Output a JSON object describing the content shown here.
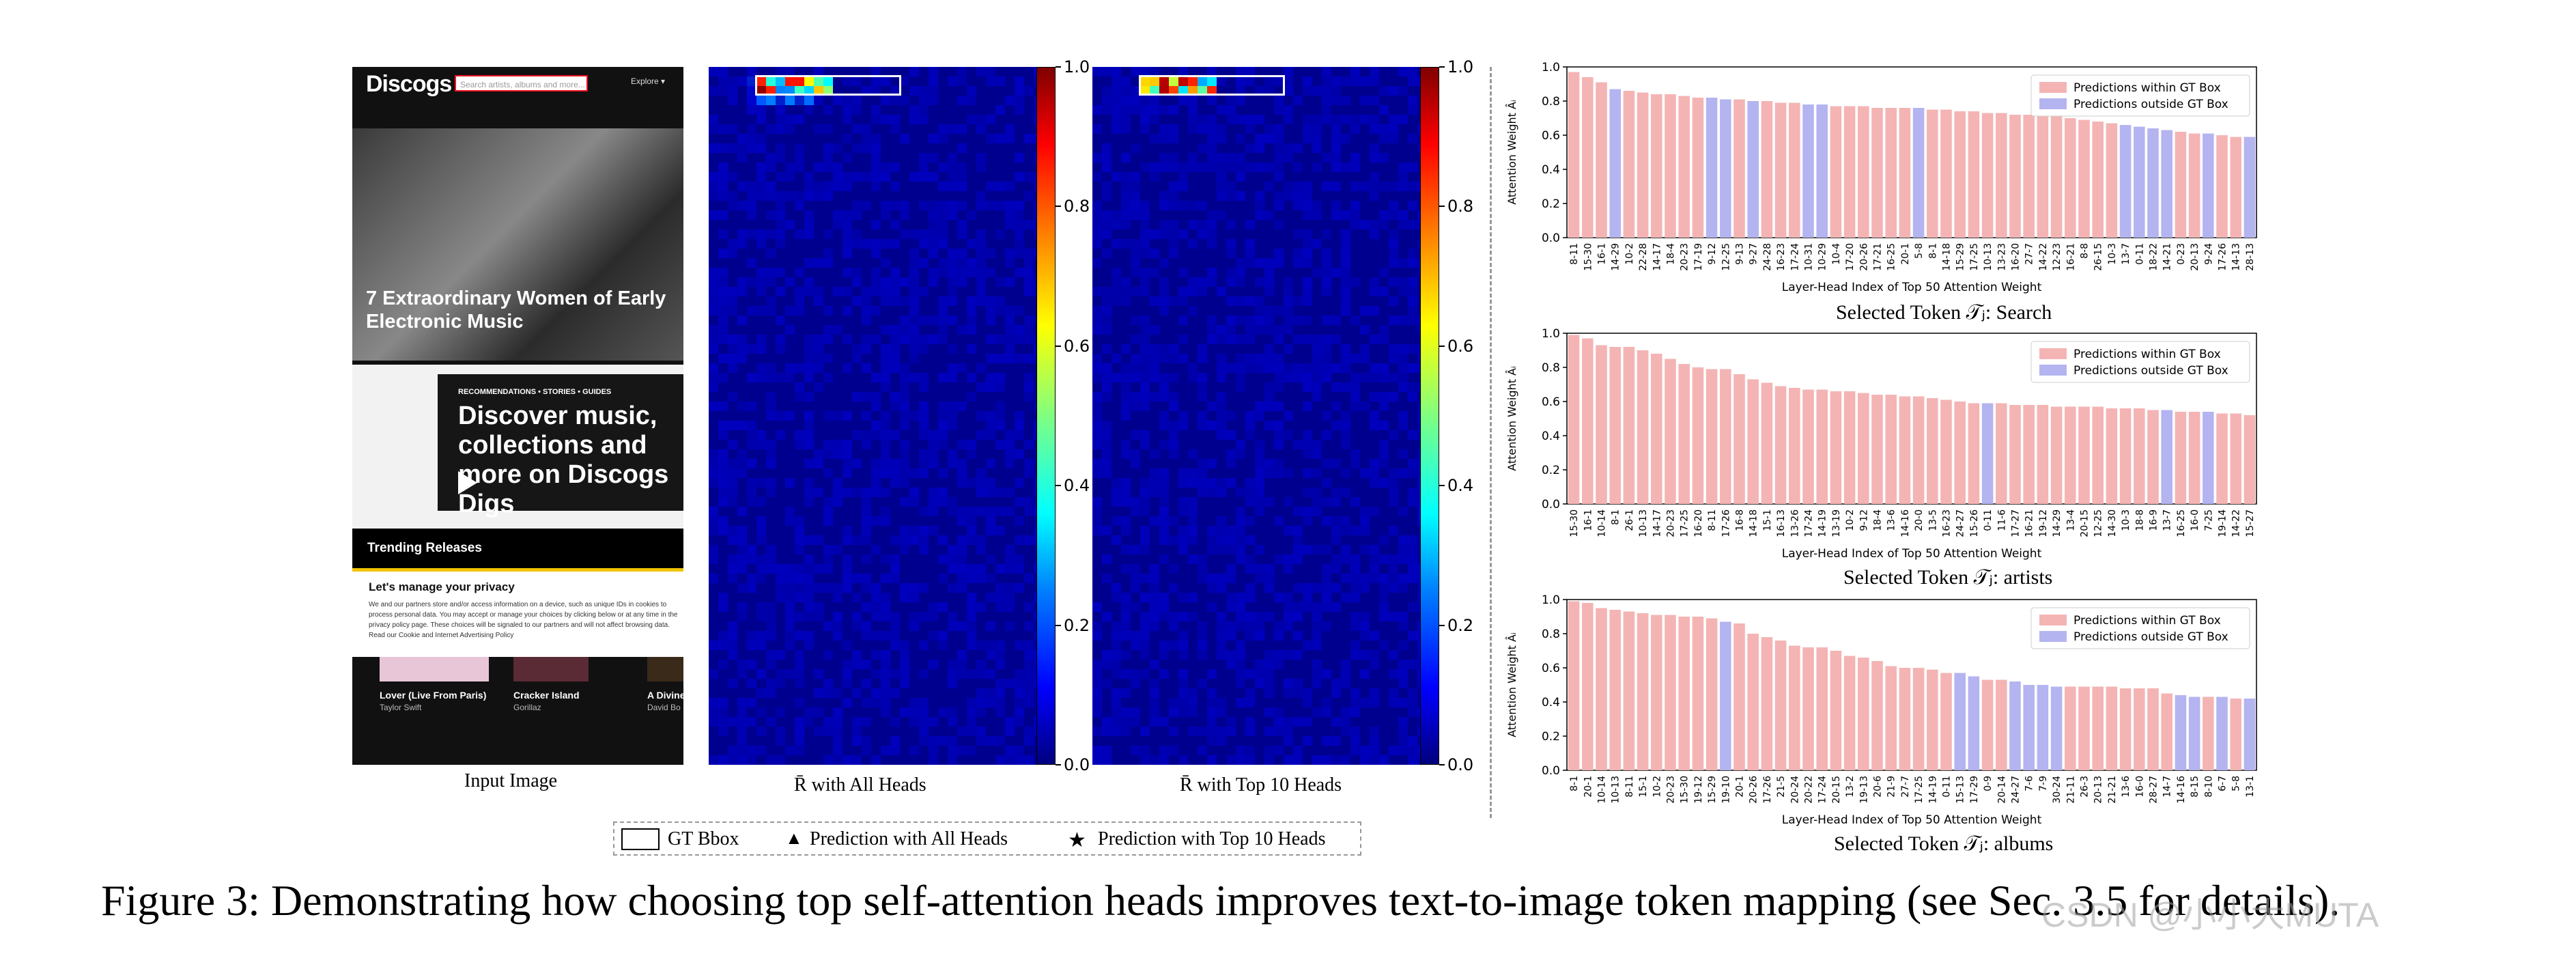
{
  "figure_caption": "Figure 3: Demonstrating how choosing top self-attention heads improves text-to-image token mapping (see Sec. 3.5 for details).",
  "watermark": "CSDN @小小大MUTA",
  "panels": {
    "input_label": "Input Image",
    "all_heads_label": "R̄ with All Heads",
    "top10_label": "R̄ with Top 10 Heads"
  },
  "screenshot": {
    "logo": "Discogs",
    "search_placeholder": "Search artists, albums and more...",
    "explore": "Explore ▾",
    "hero_title": "7 Extraordinary Women of Early Electronic Music",
    "digs_kicker": "RECOMMENDATIONS • STORIES • GUIDES",
    "digs_title": "Discover music, collections and more on Discogs Digs",
    "trending": "Trending Releases",
    "privacy_title": "Let's manage your privacy",
    "privacy_body": "We and our partners store and/or access information on a device, such as unique IDs in cookies to process personal data. You may accept or manage your choices by clicking below or at any time in the privacy policy page. These choices will be signaled to our partners and will not affect browsing data. Read our Cookie and Internet Advertising Policy",
    "albums": [
      {
        "title": "Lover (Live From Paris)",
        "artist": "Taylor Swift"
      },
      {
        "title": "Cracker Island",
        "artist": "Gorillaz"
      },
      {
        "title": "A Divine",
        "artist": "David Bo"
      }
    ]
  },
  "colorbar": {
    "ticks": [
      "0.0",
      "0.2",
      "0.4",
      "0.6",
      "0.8",
      "1.0"
    ]
  },
  "legend": {
    "gt_bbox": "GT Bbox",
    "pred_all": "Prediction with All Heads",
    "pred_top10": "Prediction with Top 10 Heads"
  },
  "colors": {
    "inside": "#f4b4b4",
    "outside": "#b4b4f0"
  },
  "chart_data": [
    {
      "type": "bar",
      "title": "Selected Token 𝒯ⱼ: Search",
      "xlabel": "Layer-Head Index of Top 50 Attention Weight",
      "ylabel": "Attention Weight Âᵢ",
      "ylim": [
        0,
        1.0
      ],
      "yticks": [
        "0.0",
        "0.2",
        "0.4",
        "0.6",
        "0.8",
        "1.0"
      ],
      "legend": [
        "Predictions within GT Box",
        "Predictions outside GT Box"
      ],
      "categories": [
        "8-11",
        "15-30",
        "16-1",
        "14-29",
        "10-2",
        "22-28",
        "14-17",
        "18-4",
        "20-23",
        "17-19",
        "9-12",
        "12-25",
        "9-13",
        "9-27",
        "24-28",
        "16-23",
        "17-24",
        "10-31",
        "10-29",
        "10-4",
        "17-20",
        "20-26",
        "17-21",
        "16-25",
        "20-1",
        "5-8",
        "8-1",
        "14-18",
        "15-29",
        "17-25",
        "10-13",
        "13-23",
        "16-20",
        "27-7",
        "14-22",
        "12-23",
        "16-21",
        "8-8",
        "26-15",
        "10-3",
        "13-7",
        "0-11",
        "18-22",
        "14-21",
        "0-23",
        "20-13",
        "9-24",
        "17-26",
        "14-13",
        "28-13"
      ],
      "values": [
        0.97,
        0.94,
        0.91,
        0.87,
        0.86,
        0.85,
        0.84,
        0.84,
        0.83,
        0.82,
        0.82,
        0.81,
        0.81,
        0.8,
        0.8,
        0.79,
        0.79,
        0.78,
        0.78,
        0.77,
        0.77,
        0.77,
        0.76,
        0.76,
        0.76,
        0.76,
        0.75,
        0.75,
        0.74,
        0.74,
        0.73,
        0.73,
        0.72,
        0.72,
        0.71,
        0.71,
        0.7,
        0.69,
        0.68,
        0.67,
        0.66,
        0.65,
        0.64,
        0.63,
        0.62,
        0.61,
        0.61,
        0.6,
        0.59,
        0.59
      ],
      "outside": [
        false,
        false,
        false,
        true,
        false,
        false,
        false,
        false,
        false,
        false,
        true,
        true,
        false,
        true,
        false,
        false,
        false,
        true,
        true,
        false,
        false,
        false,
        false,
        false,
        false,
        true,
        false,
        false,
        false,
        false,
        false,
        false,
        false,
        false,
        false,
        false,
        false,
        false,
        false,
        false,
        true,
        true,
        true,
        true,
        false,
        false,
        true,
        false,
        false,
        true
      ]
    },
    {
      "type": "bar",
      "title": "Selected Token 𝒯ⱼ: artists",
      "xlabel": "Layer-Head Index of Top 50 Attention Weight",
      "ylabel": "Attention Weight Âᵢ",
      "ylim": [
        0,
        1.0
      ],
      "yticks": [
        "0.0",
        "0.2",
        "0.4",
        "0.6",
        "0.8",
        "1.0"
      ],
      "legend": [
        "Predictions within GT Box",
        "Predictions outside GT Box"
      ],
      "categories": [
        "15-30",
        "16-1",
        "10-14",
        "8-1",
        "26-1",
        "10-13",
        "14-17",
        "20-23",
        "17-25",
        "16-20",
        "8-11",
        "17-26",
        "16-8",
        "14-18",
        "15-1",
        "16-13",
        "13-26",
        "17-24",
        "14-19",
        "13-19",
        "10-2",
        "9-12",
        "18-4",
        "13-6",
        "14-16",
        "20-0",
        "13-5",
        "16-23",
        "24-27",
        "15-26",
        "0-11",
        "11-6",
        "17-27",
        "16-21",
        "19-12",
        "14-29",
        "13-4",
        "20-15",
        "12-25",
        "14-30",
        "10-3",
        "18-8",
        "16-9",
        "13-7",
        "16-25",
        "16-0",
        "7-25",
        "19-14",
        "14-22",
        "15-27"
      ],
      "values": [
        0.99,
        0.97,
        0.93,
        0.92,
        0.92,
        0.9,
        0.88,
        0.85,
        0.82,
        0.8,
        0.79,
        0.79,
        0.76,
        0.73,
        0.71,
        0.69,
        0.68,
        0.67,
        0.67,
        0.66,
        0.66,
        0.65,
        0.64,
        0.64,
        0.63,
        0.63,
        0.62,
        0.61,
        0.6,
        0.59,
        0.59,
        0.59,
        0.58,
        0.58,
        0.58,
        0.57,
        0.57,
        0.57,
        0.57,
        0.56,
        0.56,
        0.56,
        0.55,
        0.55,
        0.54,
        0.54,
        0.54,
        0.53,
        0.53,
        0.52
      ],
      "outside": [
        false,
        false,
        false,
        false,
        false,
        false,
        false,
        false,
        false,
        false,
        false,
        false,
        false,
        false,
        false,
        false,
        false,
        false,
        false,
        false,
        false,
        false,
        false,
        false,
        false,
        false,
        false,
        false,
        false,
        false,
        true,
        false,
        false,
        false,
        false,
        false,
        false,
        false,
        false,
        false,
        false,
        false,
        false,
        true,
        false,
        false,
        true,
        false,
        false,
        false
      ]
    },
    {
      "type": "bar",
      "title": "Selected Token 𝒯ⱼ: albums",
      "xlabel": "Layer-Head Index of Top 50 Attention Weight",
      "ylabel": "Attention Weight Âᵢ",
      "ylim": [
        0,
        1.0
      ],
      "yticks": [
        "0.0",
        "0.2",
        "0.4",
        "0.6",
        "0.8",
        "1.0"
      ],
      "legend": [
        "Predictions within GT Box",
        "Predictions outside GT Box"
      ],
      "categories": [
        "8-1",
        "20-1",
        "10-14",
        "10-13",
        "8-11",
        "15-1",
        "10-2",
        "20-23",
        "15-30",
        "19-12",
        "15-29",
        "19-10",
        "20-1",
        "20-26",
        "17-26",
        "21-5",
        "20-24",
        "20-22",
        "17-24",
        "20-15",
        "13-2",
        "19-13",
        "20-6",
        "21-9",
        "27-7",
        "17-25",
        "14-19",
        "0-11",
        "15-13",
        "17-29",
        "0-9",
        "20-14",
        "24-27",
        "7-6",
        "7-9",
        "30-24",
        "21-11",
        "26-3",
        "20-13",
        "21-21",
        "13-6",
        "16-0",
        "28-27",
        "14-7",
        "14-16",
        "8-15",
        "8-10",
        "6-7",
        "5-8",
        "13-1"
      ],
      "values": [
        0.99,
        0.98,
        0.95,
        0.94,
        0.93,
        0.92,
        0.91,
        0.91,
        0.9,
        0.9,
        0.89,
        0.87,
        0.86,
        0.8,
        0.78,
        0.76,
        0.73,
        0.72,
        0.72,
        0.7,
        0.67,
        0.66,
        0.64,
        0.61,
        0.6,
        0.6,
        0.59,
        0.57,
        0.57,
        0.55,
        0.53,
        0.53,
        0.52,
        0.5,
        0.5,
        0.49,
        0.49,
        0.49,
        0.49,
        0.49,
        0.48,
        0.48,
        0.48,
        0.45,
        0.44,
        0.43,
        0.43,
        0.43,
        0.42,
        0.42
      ],
      "outside": [
        false,
        false,
        false,
        false,
        false,
        false,
        false,
        false,
        false,
        false,
        false,
        true,
        false,
        false,
        false,
        false,
        false,
        false,
        false,
        false,
        false,
        false,
        false,
        false,
        false,
        false,
        false,
        false,
        true,
        true,
        false,
        false,
        true,
        true,
        true,
        true,
        false,
        false,
        false,
        false,
        false,
        false,
        false,
        false,
        true,
        true,
        false,
        true,
        false,
        true
      ]
    }
  ]
}
